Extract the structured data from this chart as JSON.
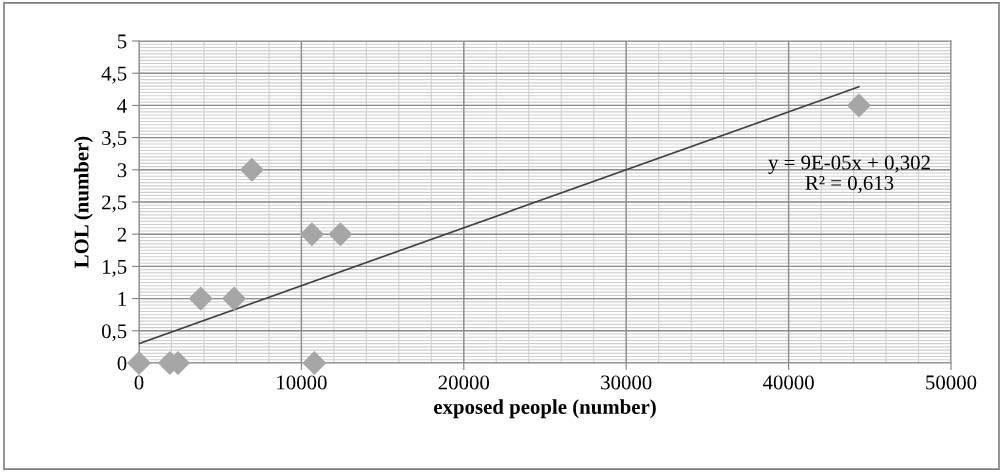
{
  "chart_data": {
    "type": "scatter",
    "xlabel": "exposed people (number)",
    "ylabel": "LOL (number)",
    "xlim": [
      0,
      50000
    ],
    "xticks": [
      0,
      10000,
      20000,
      30000,
      40000,
      50000
    ],
    "ylim": [
      0,
      5
    ],
    "yticks": [
      0,
      {
        "value": 0.5,
        "label": "0,5"
      },
      1,
      {
        "value": 1.5,
        "label": "1,5"
      },
      2,
      {
        "value": 2.5,
        "label": "2,5"
      },
      3,
      {
        "value": 3.5,
        "label": "3,5"
      },
      4,
      {
        "value": 4.5,
        "label": "4,5"
      },
      5
    ],
    "grid": true,
    "legend": false,
    "series": [
      {
        "marker": "diamond",
        "color": "#a6a6a6",
        "x": [
          0,
          1900,
          2400,
          3800,
          5850,
          6950,
          10650,
          10800,
          12400,
          44330
        ],
        "values": [
          0,
          0,
          0,
          1,
          1,
          3,
          2,
          0,
          2,
          4
        ]
      },
      {
        "type": "line",
        "marker": "none",
        "color": "#404040",
        "x": [
          0,
          44330
        ],
        "values": [
          0.3,
          4.29
        ]
      }
    ],
    "annotations": [
      "y = 9E-05x + 0,302\nR² = 0,613"
    ]
  }
}
